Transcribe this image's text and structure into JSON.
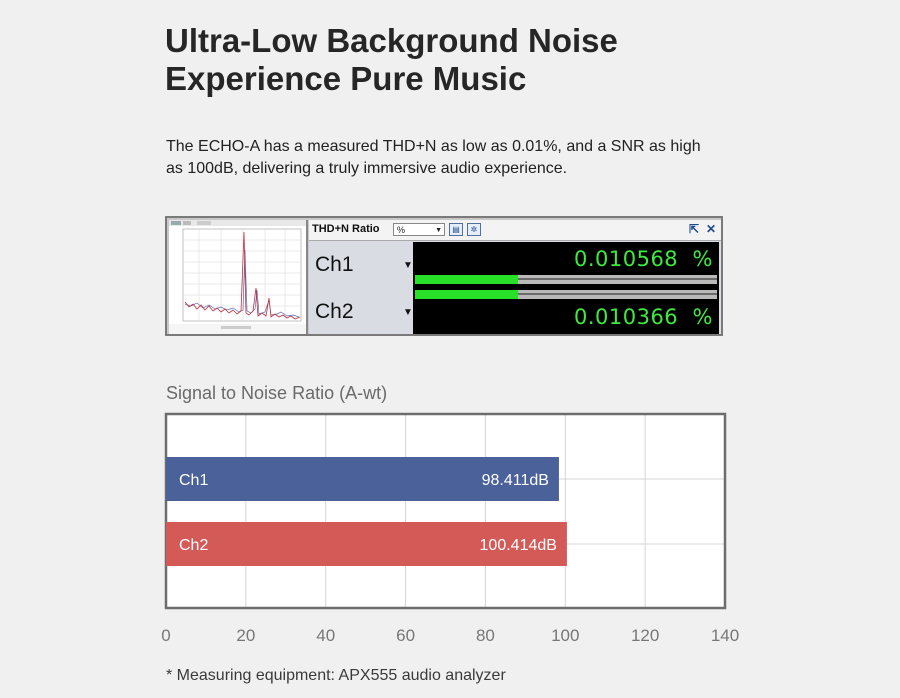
{
  "headline": {
    "line1": "Ultra-Low Background Noise",
    "line2": "Experience Pure Music"
  },
  "description": {
    "line1": "The ECHO-A has a measured THD+N as low as 0.01%, and a SNR as high",
    "line2": "as 100dB, delivering a truly immersive audio experience."
  },
  "analyzer": {
    "meter_title": "THD+N Ratio",
    "unit_selected": "%",
    "channels": [
      {
        "label": "Ch1",
        "value": "0.010568",
        "unit": "%",
        "level": 0.34
      },
      {
        "label": "Ch2",
        "value": "0.010366",
        "unit": "%",
        "level": 0.34
      }
    ],
    "colors": {
      "display_bg": "#000000",
      "digits": "#3eea3e",
      "bar": "#27e027"
    },
    "icons": [
      "graph-settings-icon",
      "gear-icon",
      "pop-out-icon",
      "close-icon"
    ]
  },
  "chart_data": {
    "type": "bar",
    "orientation": "horizontal",
    "title": "Signal to Noise Ratio (A-wt)",
    "categories": [
      "Ch1",
      "Ch2"
    ],
    "values": [
      98.411,
      100.414
    ],
    "value_labels": [
      "98.411dB",
      "100.414dB"
    ],
    "colors": [
      "#4a6199",
      "#d45a58"
    ],
    "xlim": [
      0,
      140
    ],
    "xticks": [
      "0",
      "20",
      "40",
      "60",
      "80",
      "100",
      "120",
      "140"
    ],
    "grid": true,
    "xlabel": "",
    "ylabel": ""
  },
  "footnote": "* Measuring equipment: APX555 audio analyzer"
}
